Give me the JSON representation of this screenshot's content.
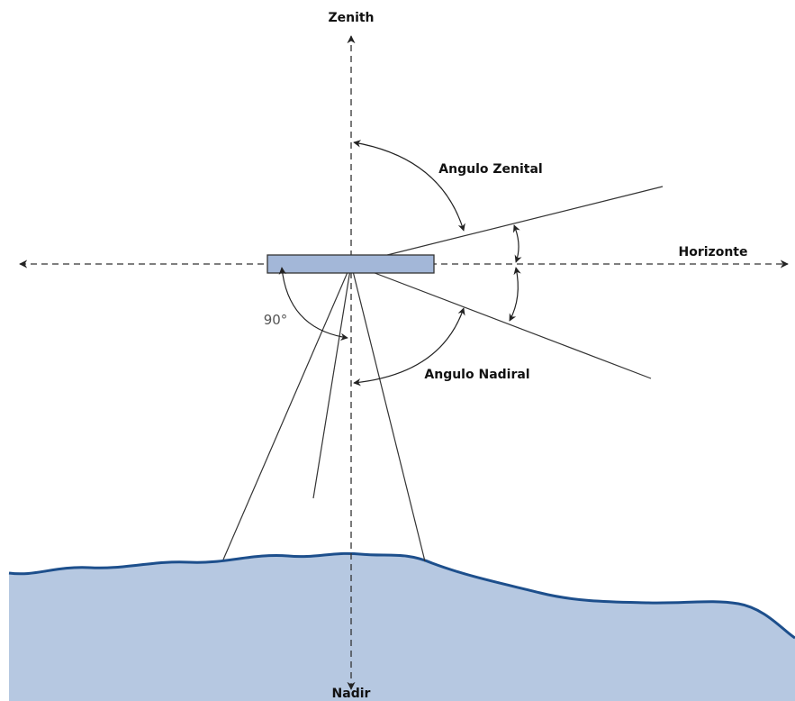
{
  "labels": {
    "zenith": "Zenith",
    "nadir": "Nadir",
    "horizon": "Horizonte",
    "zenith_angle": "Angulo Zenital",
    "nadir_angle": "Angulo Nadiral",
    "right_angle": "90°"
  }
}
